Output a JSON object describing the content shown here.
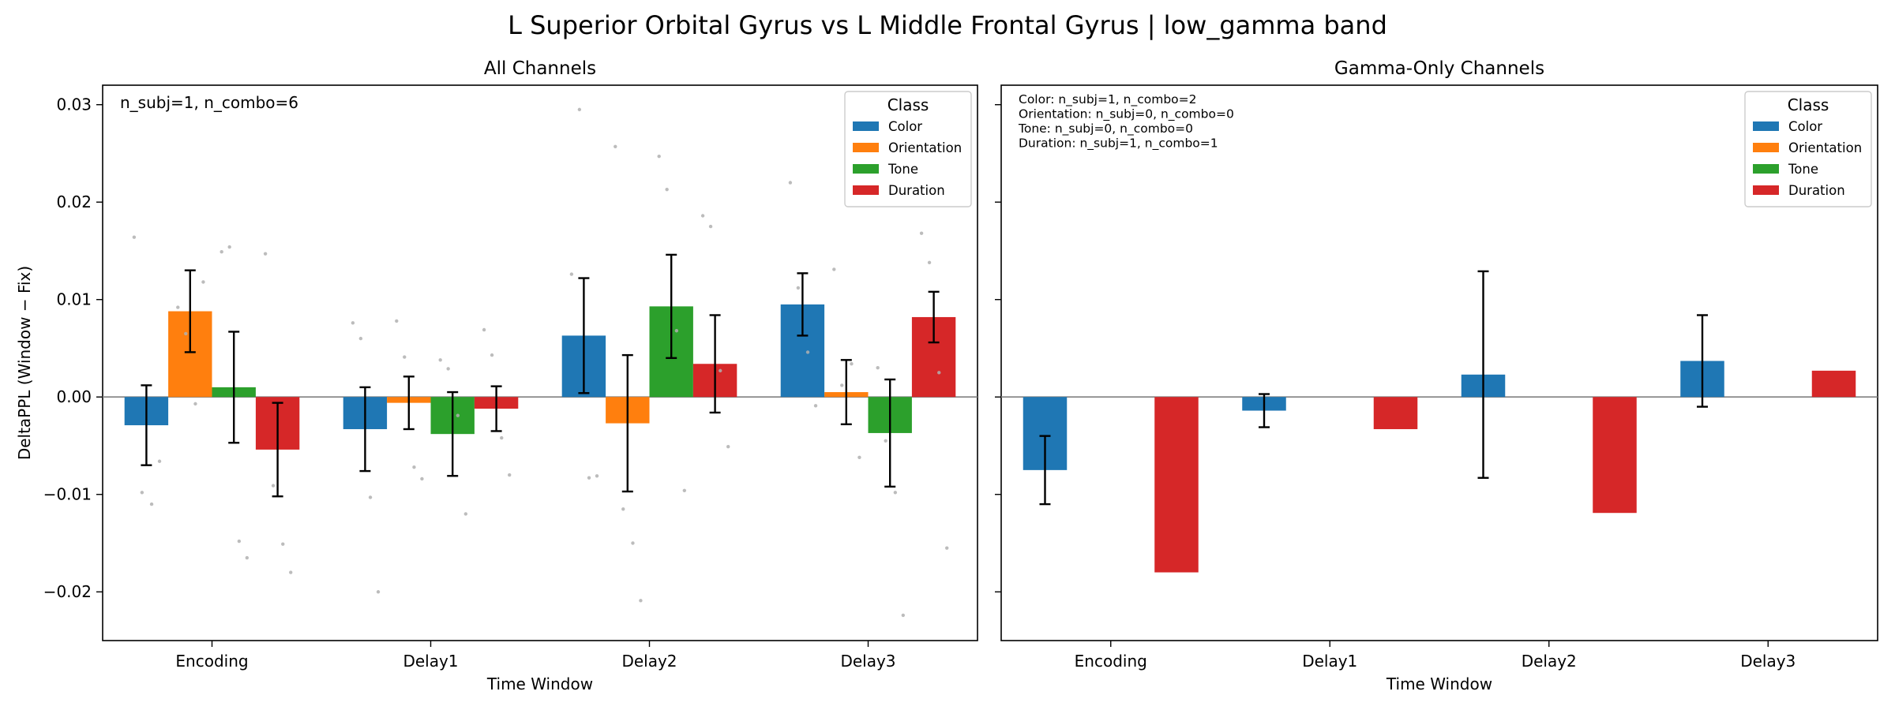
{
  "figure": {
    "suptitle": "L Superior Orbital Gyrus vs L Middle Frontal Gyrus  |  low_gamma band"
  },
  "legend_title": "Class",
  "classes": [
    {
      "name": "Color",
      "color": "#1f77b4"
    },
    {
      "name": "Orientation",
      "color": "#ff7f0e"
    },
    {
      "name": "Tone",
      "color": "#2ca02c"
    },
    {
      "name": "Duration",
      "color": "#d62728"
    }
  ],
  "chart_data": [
    {
      "type": "bar",
      "title": "All Channels",
      "xlabel": "Time Window",
      "ylabel": "DeltaPPL (Window − Fix)",
      "ylim": [
        -0.025,
        0.032
      ],
      "yticks": [
        -0.02,
        -0.01,
        0.0,
        0.01,
        0.02,
        0.03
      ],
      "ytick_labels": [
        "−0.02",
        "−0.01",
        "0.00",
        "0.01",
        "0.02",
        "0.03"
      ],
      "categories": [
        "Encoding",
        "Delay1",
        "Delay2",
        "Delay3"
      ],
      "legend_position": "top-right",
      "annotation": [
        "n_subj=1, n_combo=6"
      ],
      "series": [
        {
          "name": "Color",
          "values": [
            -0.0029,
            -0.0033,
            0.0063,
            0.0095
          ],
          "err": [
            0.0041,
            0.0043,
            0.0059,
            0.0032
          ],
          "points": [
            [
              0.0164,
              -0.0098,
              -0.011,
              -0.0066
            ],
            [
              0.0076,
              0.006,
              -0.0103,
              -0.02
            ],
            [
              0.0126,
              0.0295,
              -0.0083,
              -0.0081
            ],
            [
              0.022,
              0.0112,
              0.0046,
              -0.0009
            ]
          ]
        },
        {
          "name": "Orientation",
          "values": [
            0.0088,
            -0.0006,
            -0.0027,
            0.0005
          ],
          "err": [
            0.0042,
            0.0027,
            0.007,
            0.0033
          ],
          "points": [
            [
              0.0092,
              0.0065,
              -0.0007,
              0.0118
            ],
            [
              0.0078,
              0.0041,
              -0.0072,
              -0.0084
            ],
            [
              0.0257,
              -0.0115,
              -0.015,
              -0.0209
            ],
            [
              0.0131,
              0.0012,
              0.0034,
              -0.0062
            ]
          ]
        },
        {
          "name": "Tone",
          "values": [
            0.001,
            -0.0038,
            0.0093,
            -0.0037
          ],
          "err": [
            0.0057,
            0.0043,
            0.0053,
            0.0055
          ],
          "points": [
            [
              0.0149,
              0.0154,
              -0.0148,
              -0.0165
            ],
            [
              0.0038,
              0.0029,
              -0.0019,
              -0.012
            ],
            [
              0.0247,
              0.0213,
              0.0068,
              -0.0096
            ],
            [
              0.003,
              -0.0045,
              -0.0098,
              -0.0224
            ]
          ]
        },
        {
          "name": "Duration",
          "values": [
            -0.0054,
            -0.0012,
            0.0034,
            0.0082
          ],
          "err": [
            0.0048,
            0.0023,
            0.005,
            0.0026
          ],
          "points": [
            [
              0.0147,
              -0.0091,
              -0.0151,
              -0.018
            ],
            [
              0.0069,
              0.0043,
              -0.0042,
              -0.008
            ],
            [
              0.0186,
              0.0175,
              0.0027,
              -0.0051
            ],
            [
              0.0168,
              0.0138,
              0.0025,
              -0.0155
            ]
          ]
        }
      ]
    },
    {
      "type": "bar",
      "title": "Gamma-Only Channels",
      "xlabel": "Time Window",
      "ylabel": "",
      "ylim": [
        -0.025,
        0.032
      ],
      "categories": [
        "Encoding",
        "Delay1",
        "Delay2",
        "Delay3"
      ],
      "legend_position": "top-right",
      "annotation": [
        "Color: n_subj=1, n_combo=2",
        "Orientation: n_subj=0, n_combo=0",
        "Tone: n_subj=0, n_combo=0",
        "Duration: n_subj=1, n_combo=1"
      ],
      "series": [
        {
          "name": "Color",
          "values": [
            -0.0075,
            -0.0014,
            0.0023,
            0.0037
          ],
          "err": [
            0.0035,
            0.0017,
            0.0106,
            0.0047
          ]
        },
        {
          "name": "Orientation",
          "values": [
            null,
            null,
            null,
            null
          ],
          "err": [
            null,
            null,
            null,
            null
          ]
        },
        {
          "name": "Tone",
          "values": [
            null,
            null,
            null,
            null
          ],
          "err": [
            null,
            null,
            null,
            null
          ]
        },
        {
          "name": "Duration",
          "values": [
            -0.018,
            -0.0033,
            -0.0119,
            0.0027
          ],
          "err": [
            null,
            null,
            null,
            null
          ]
        }
      ]
    }
  ]
}
